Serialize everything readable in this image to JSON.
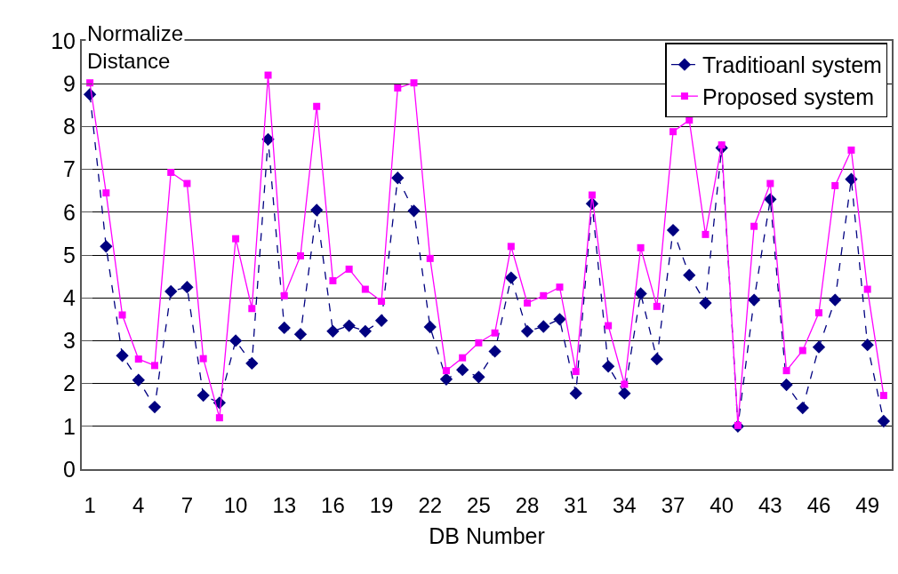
{
  "chart_data": {
    "type": "line",
    "xlabel": "DB Number",
    "ylabel": "Normalize Distance",
    "x": [
      1,
      2,
      3,
      4,
      5,
      6,
      7,
      8,
      9,
      10,
      11,
      12,
      13,
      14,
      15,
      16,
      17,
      18,
      19,
      20,
      21,
      22,
      23,
      24,
      25,
      26,
      27,
      28,
      29,
      30,
      31,
      32,
      33,
      34,
      35,
      36,
      37,
      38,
      39,
      40,
      41,
      42,
      43,
      44,
      45,
      46,
      47,
      48,
      49,
      50
    ],
    "xlim": [
      0.5,
      50.5
    ],
    "xticks": [
      1,
      4,
      7,
      10,
      13,
      16,
      19,
      22,
      25,
      28,
      31,
      34,
      37,
      40,
      43,
      46,
      49
    ],
    "ylim": [
      0,
      10
    ],
    "yticks": [
      0,
      1,
      2,
      3,
      4,
      5,
      6,
      7,
      8,
      9,
      10
    ],
    "grid": "y",
    "legend": "top right",
    "series": [
      {
        "name": "Traditioanl system",
        "color": "#000080",
        "marker": "diamond",
        "line_style": "dashed",
        "values": [
          8.75,
          5.2,
          2.65,
          2.08,
          1.45,
          4.15,
          4.25,
          1.72,
          1.55,
          3.0,
          2.47,
          7.7,
          3.3,
          3.15,
          6.05,
          3.22,
          3.35,
          3.22,
          3.47,
          6.8,
          6.03,
          3.32,
          2.1,
          2.32,
          2.15,
          2.75,
          4.47,
          3.22,
          3.33,
          3.5,
          1.77,
          6.2,
          2.4,
          1.77,
          4.1,
          2.57,
          5.58,
          4.53,
          3.88,
          7.5,
          1.0,
          3.95,
          6.3,
          1.97,
          1.43,
          2.85,
          3.95,
          6.77,
          2.9,
          1.12
        ]
      },
      {
        "name": "Proposed system",
        "color": "#ff00ff",
        "marker": "square",
        "line_style": "solid",
        "values": [
          9.02,
          6.45,
          3.6,
          2.57,
          2.42,
          6.93,
          6.67,
          2.58,
          1.2,
          5.38,
          3.75,
          9.2,
          4.05,
          4.98,
          8.47,
          4.4,
          4.67,
          4.2,
          3.92,
          8.9,
          9.02,
          4.92,
          2.3,
          2.6,
          2.95,
          3.18,
          5.2,
          3.88,
          4.05,
          4.25,
          2.28,
          6.4,
          3.35,
          1.98,
          5.17,
          3.8,
          7.88,
          8.15,
          5.48,
          7.57,
          1.02,
          5.67,
          6.67,
          2.3,
          2.77,
          3.65,
          6.62,
          7.45,
          4.2,
          1.72
        ]
      }
    ]
  }
}
